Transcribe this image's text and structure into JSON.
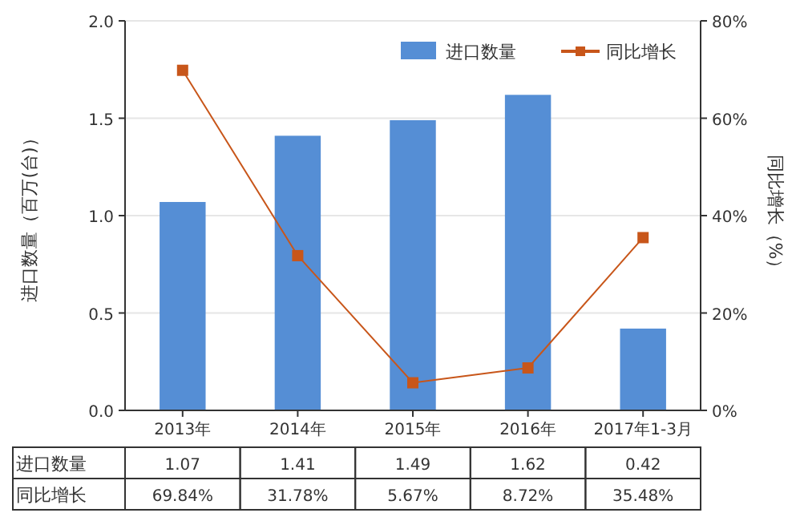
{
  "chart_data": {
    "type": "bar",
    "categories": [
      "2013年",
      "2014年",
      "2015年",
      "2016年",
      "2017年1-3月"
    ],
    "ylabel": "进口数量（百万(台)）",
    "y2label": "同比增长（%）",
    "series": [
      {
        "name": "进口数量",
        "color": "#558ed5",
        "values": [
          1.07,
          1.41,
          1.49,
          1.62,
          0.42
        ],
        "value_labels": [
          "1.07",
          "1.41",
          "1.49",
          "1.62",
          "0.42"
        ]
      },
      {
        "name": "同比增长",
        "type": "line",
        "axis": "y2",
        "color": "#c8561a",
        "marker": "square",
        "values": [
          69.84,
          31.78,
          5.67,
          8.72,
          35.48
        ],
        "value_labels": [
          "69.84%",
          "31.78%",
          "5.67%",
          "8.72%",
          "35.48%"
        ]
      }
    ],
    "ylim": [
      0,
      2
    ],
    "yticks": [
      {
        "value": 0,
        "label": "0.0"
      },
      {
        "value": 0.5,
        "label": "0.5"
      },
      {
        "value": 1,
        "label": "1.0"
      },
      {
        "value": 1.5,
        "label": "1.5"
      },
      {
        "value": 2,
        "label": "2.0"
      }
    ],
    "y2lim": [
      0,
      80
    ],
    "y2ticks": [
      {
        "value": 0,
        "label": "0%"
      },
      {
        "value": 20,
        "label": "20%"
      },
      {
        "value": 40,
        "label": "40%"
      },
      {
        "value": 60,
        "label": "60%"
      },
      {
        "value": 80,
        "label": "80%"
      }
    ],
    "grid": "y",
    "legend": "top right"
  }
}
